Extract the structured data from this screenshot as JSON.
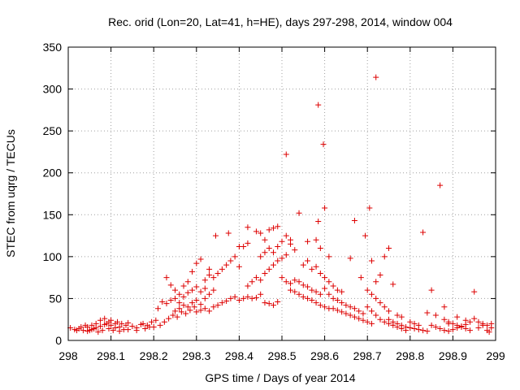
{
  "chart_data": {
    "type": "scatter",
    "title": "Rec. orid (Lon=20, Lat=41, h=HE), days 297-298, 2014, window 004",
    "xlabel": "GPS time / Days of year 2014",
    "ylabel": "STEC from uqrg / TECUs",
    "xlim": [
      298,
      299
    ],
    "ylim": [
      0,
      350
    ],
    "x_ticks": [
      298,
      298.1,
      298.2,
      298.3,
      298.4,
      298.5,
      298.6,
      298.7,
      298.8,
      298.9,
      299
    ],
    "x_tick_labels": [
      "298",
      "298.1",
      "298.2",
      "298.3",
      "298.4",
      "298.5",
      "298.6",
      "298.7",
      "298.8",
      "298.9",
      "299"
    ],
    "y_ticks": [
      0,
      50,
      100,
      150,
      200,
      250,
      300,
      350
    ],
    "y_tick_labels": [
      "0",
      "50",
      "100",
      "150",
      "200",
      "250",
      "300",
      "350"
    ],
    "grid": true,
    "marker": "+",
    "color": "#dd0000",
    "series": [
      {
        "name": "STEC",
        "points": [
          [
            298.005,
            15
          ],
          [
            298.015,
            13
          ],
          [
            298.025,
            14
          ],
          [
            298.035,
            12
          ],
          [
            298.045,
            16
          ],
          [
            298.055,
            18
          ],
          [
            298.065,
            20
          ],
          [
            298.075,
            24
          ],
          [
            298.085,
            26
          ],
          [
            298.095,
            22
          ],
          [
            298.02,
            12
          ],
          [
            298.03,
            16
          ],
          [
            298.04,
            18
          ],
          [
            298.05,
            12
          ],
          [
            298.06,
            14
          ],
          [
            298.07,
            10
          ],
          [
            298.08,
            12
          ],
          [
            298.09,
            20
          ],
          [
            298.1,
            18
          ],
          [
            298.11,
            15
          ],
          [
            298.045,
            11
          ],
          [
            298.055,
            13
          ],
          [
            298.065,
            15
          ],
          [
            298.075,
            17
          ],
          [
            298.085,
            19
          ],
          [
            298.095,
            14
          ],
          [
            298.105,
            12
          ],
          [
            298.115,
            22
          ],
          [
            298.125,
            20
          ],
          [
            298.135,
            18
          ],
          [
            298.1,
            24
          ],
          [
            298.11,
            20
          ],
          [
            298.12,
            16
          ],
          [
            298.13,
            13
          ],
          [
            298.14,
            21
          ],
          [
            298.15,
            17
          ],
          [
            298.16,
            15
          ],
          [
            298.17,
            19
          ],
          [
            298.18,
            14
          ],
          [
            298.19,
            16
          ],
          [
            298.12,
            11
          ],
          [
            298.14,
            13
          ],
          [
            298.16,
            12
          ],
          [
            298.175,
            20
          ],
          [
            298.185,
            18
          ],
          [
            298.195,
            22
          ],
          [
            298.205,
            24
          ],
          [
            298.21,
            38
          ],
          [
            298.22,
            46
          ],
          [
            298.23,
            44
          ],
          [
            298.2,
            16
          ],
          [
            298.215,
            18
          ],
          [
            298.225,
            22
          ],
          [
            298.235,
            26
          ],
          [
            298.245,
            30
          ],
          [
            298.255,
            28
          ],
          [
            298.265,
            34
          ],
          [
            298.275,
            32
          ],
          [
            298.285,
            36
          ],
          [
            298.295,
            40
          ],
          [
            298.23,
            75
          ],
          [
            298.24,
            66
          ],
          [
            298.25,
            60
          ],
          [
            298.26,
            55
          ],
          [
            298.27,
            65
          ],
          [
            298.28,
            70
          ],
          [
            298.29,
            82
          ],
          [
            298.3,
            92
          ],
          [
            298.31,
            97
          ],
          [
            298.32,
            62
          ],
          [
            298.24,
            48
          ],
          [
            298.25,
            50
          ],
          [
            298.26,
            45
          ],
          [
            298.27,
            52
          ],
          [
            298.28,
            57
          ],
          [
            298.29,
            60
          ],
          [
            298.3,
            64
          ],
          [
            298.31,
            58
          ],
          [
            298.32,
            72
          ],
          [
            298.33,
            85
          ],
          [
            298.25,
            35
          ],
          [
            298.26,
            38
          ],
          [
            298.27,
            42
          ],
          [
            298.28,
            40
          ],
          [
            298.29,
            45
          ],
          [
            298.3,
            48
          ],
          [
            298.31,
            43
          ],
          [
            298.32,
            50
          ],
          [
            298.33,
            55
          ],
          [
            298.34,
            60
          ],
          [
            298.3,
            34
          ],
          [
            298.31,
            36
          ],
          [
            298.32,
            38
          ],
          [
            298.33,
            35
          ],
          [
            298.34,
            40
          ],
          [
            298.35,
            42
          ],
          [
            298.36,
            45
          ],
          [
            298.37,
            47
          ],
          [
            298.38,
            50
          ],
          [
            298.39,
            52
          ],
          [
            298.33,
            78
          ],
          [
            298.34,
            75
          ],
          [
            298.35,
            80
          ],
          [
            298.36,
            85
          ],
          [
            298.37,
            90
          ],
          [
            298.38,
            95
          ],
          [
            298.39,
            100
          ],
          [
            298.4,
            88
          ],
          [
            298.41,
            112
          ],
          [
            298.42,
            116
          ],
          [
            298.345,
            125
          ],
          [
            298.375,
            128
          ],
          [
            298.4,
            112
          ],
          [
            298.42,
            135
          ],
          [
            298.44,
            130
          ],
          [
            298.46,
            120
          ],
          [
            298.45,
            128
          ],
          [
            298.47,
            132
          ],
          [
            298.48,
            134
          ],
          [
            298.49,
            136
          ],
          [
            298.4,
            48
          ],
          [
            298.41,
            50
          ],
          [
            298.42,
            52
          ],
          [
            298.43,
            50
          ],
          [
            298.44,
            51
          ],
          [
            298.45,
            55
          ],
          [
            298.46,
            45
          ],
          [
            298.47,
            44
          ],
          [
            298.48,
            42
          ],
          [
            298.49,
            46
          ],
          [
            298.42,
            65
          ],
          [
            298.43,
            70
          ],
          [
            298.44,
            75
          ],
          [
            298.45,
            72
          ],
          [
            298.46,
            80
          ],
          [
            298.47,
            85
          ],
          [
            298.48,
            90
          ],
          [
            298.49,
            95
          ],
          [
            298.5,
            98
          ],
          [
            298.51,
            102
          ],
          [
            298.45,
            100
          ],
          [
            298.46,
            105
          ],
          [
            298.47,
            110
          ],
          [
            298.48,
            105
          ],
          [
            298.49,
            112
          ],
          [
            298.5,
            118
          ],
          [
            298.51,
            125
          ],
          [
            298.52,
            120
          ],
          [
            298.52,
            115
          ],
          [
            298.53,
            108
          ],
          [
            298.5,
            75
          ],
          [
            298.51,
            70
          ],
          [
            298.52,
            68
          ],
          [
            298.53,
            72
          ],
          [
            298.54,
            70
          ],
          [
            298.55,
            66
          ],
          [
            298.56,
            64
          ],
          [
            298.57,
            60
          ],
          [
            298.58,
            58
          ],
          [
            298.59,
            55
          ],
          [
            298.51,
            222
          ],
          [
            298.585,
            281
          ],
          [
            298.597,
            234
          ],
          [
            298.54,
            152
          ],
          [
            298.56,
            118
          ],
          [
            298.585,
            142
          ],
          [
            298.6,
            158
          ],
          [
            298.58,
            120
          ],
          [
            298.59,
            110
          ],
          [
            298.61,
            100
          ],
          [
            298.52,
            60
          ],
          [
            298.53,
            58
          ],
          [
            298.54,
            55
          ],
          [
            298.55,
            52
          ],
          [
            298.56,
            50
          ],
          [
            298.57,
            48
          ],
          [
            298.58,
            45
          ],
          [
            298.59,
            42
          ],
          [
            298.6,
            40
          ],
          [
            298.61,
            38
          ],
          [
            298.55,
            90
          ],
          [
            298.56,
            95
          ],
          [
            298.57,
            85
          ],
          [
            298.58,
            88
          ],
          [
            298.59,
            80
          ],
          [
            298.6,
            75
          ],
          [
            298.61,
            70
          ],
          [
            298.62,
            65
          ],
          [
            298.63,
            60
          ],
          [
            298.64,
            58
          ],
          [
            298.6,
            62
          ],
          [
            298.61,
            55
          ],
          [
            298.62,
            50
          ],
          [
            298.63,
            48
          ],
          [
            298.64,
            45
          ],
          [
            298.65,
            42
          ],
          [
            298.66,
            40
          ],
          [
            298.67,
            38
          ],
          [
            298.68,
            35
          ],
          [
            298.69,
            32
          ],
          [
            298.62,
            38
          ],
          [
            298.63,
            36
          ],
          [
            298.64,
            34
          ],
          [
            298.65,
            32
          ],
          [
            298.66,
            30
          ],
          [
            298.67,
            28
          ],
          [
            298.68,
            26
          ],
          [
            298.69,
            24
          ],
          [
            298.7,
            22
          ],
          [
            298.71,
            20
          ],
          [
            298.66,
            98
          ],
          [
            298.67,
            143
          ],
          [
            298.685,
            75
          ],
          [
            298.695,
            125
          ],
          [
            298.705,
            158
          ],
          [
            298.71,
            95
          ],
          [
            298.72,
            70
          ],
          [
            298.73,
            78
          ],
          [
            298.74,
            100
          ],
          [
            298.75,
            110
          ],
          [
            298.72,
            314
          ],
          [
            298.7,
            60
          ],
          [
            298.71,
            55
          ],
          [
            298.72,
            50
          ],
          [
            298.73,
            45
          ],
          [
            298.74,
            40
          ],
          [
            298.75,
            35
          ],
          [
            298.76,
            67
          ],
          [
            298.77,
            30
          ],
          [
            298.78,
            28
          ],
          [
            298.7,
            40
          ],
          [
            298.71,
            35
          ],
          [
            298.72,
            30
          ],
          [
            298.73,
            25
          ],
          [
            298.74,
            22
          ],
          [
            298.75,
            20
          ],
          [
            298.76,
            18
          ],
          [
            298.77,
            16
          ],
          [
            298.78,
            14
          ],
          [
            298.79,
            12
          ],
          [
            298.75,
            25
          ],
          [
            298.76,
            22
          ],
          [
            298.77,
            20
          ],
          [
            298.78,
            18
          ],
          [
            298.79,
            16
          ],
          [
            298.8,
            15
          ],
          [
            298.81,
            14
          ],
          [
            298.82,
            13
          ],
          [
            298.83,
            12
          ],
          [
            298.84,
            11
          ],
          [
            298.8,
            22
          ],
          [
            298.81,
            20
          ],
          [
            298.82,
            18
          ],
          [
            298.83,
            129
          ],
          [
            298.84,
            33
          ],
          [
            298.85,
            60
          ],
          [
            298.86,
            30
          ],
          [
            298.87,
            185
          ],
          [
            298.88,
            40
          ],
          [
            298.89,
            20
          ],
          [
            298.85,
            18
          ],
          [
            298.86,
            16
          ],
          [
            298.87,
            14
          ],
          [
            298.88,
            12
          ],
          [
            298.89,
            11
          ],
          [
            298.9,
            13
          ],
          [
            298.91,
            15
          ],
          [
            298.92,
            17
          ],
          [
            298.93,
            19
          ],
          [
            298.94,
            22
          ],
          [
            298.9,
            20
          ],
          [
            298.91,
            18
          ],
          [
            298.92,
            16
          ],
          [
            298.93,
            14
          ],
          [
            298.94,
            12
          ],
          [
            298.95,
            58
          ],
          [
            298.96,
            15
          ],
          [
            298.97,
            18
          ],
          [
            298.98,
            12
          ],
          [
            298.99,
            20
          ],
          [
            298.88,
            25
          ],
          [
            298.89,
            22
          ],
          [
            298.91,
            28
          ],
          [
            298.93,
            24
          ],
          [
            298.95,
            26
          ],
          [
            298.96,
            22
          ],
          [
            298.97,
            20
          ],
          [
            298.98,
            18
          ],
          [
            298.99,
            15
          ],
          [
            298.985,
            10
          ]
        ]
      }
    ]
  }
}
